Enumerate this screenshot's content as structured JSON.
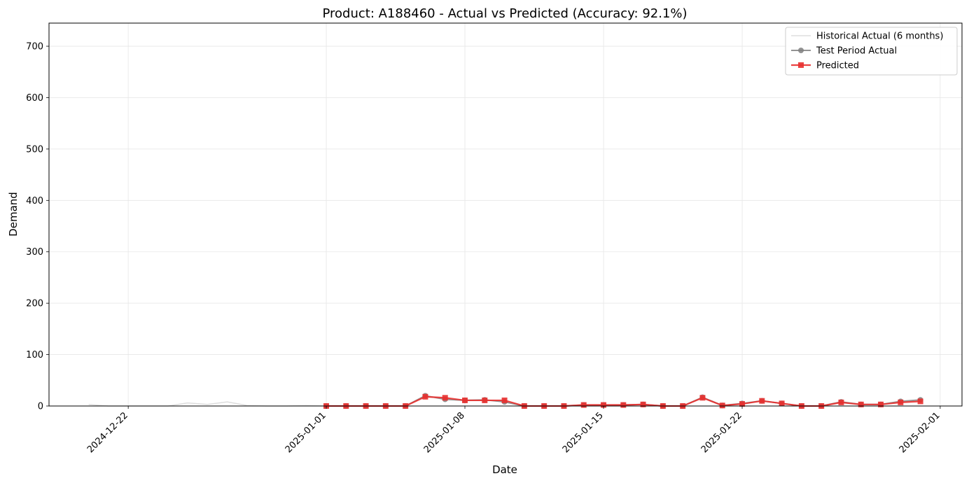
{
  "chart_data": {
    "type": "line",
    "title": "Product: A188460 - Actual vs Predicted (Accuracy: 92.1%)",
    "xlabel": "Date",
    "ylabel": "Demand",
    "ylim": [
      0,
      745
    ],
    "yticks": [
      0,
      100,
      200,
      300,
      400,
      500,
      600,
      700
    ],
    "xtick_labels": [
      "2024-12-22",
      "2025-01-01",
      "2025-01-08",
      "2025-01-15",
      "2025-01-22",
      "2025-02-01"
    ],
    "xtick_days": [
      -10,
      0,
      7,
      14,
      21,
      31
    ],
    "xlim_days": [
      -14,
      32.1
    ],
    "grid": true,
    "legend_position": "top-right",
    "colors": {
      "historical": "#d9d9d9",
      "test_actual": "#808080",
      "predicted": "#e8302f"
    },
    "series": [
      {
        "name": "Historical Actual (6 months)",
        "x_days": [
          -12,
          -11,
          -10,
          -9,
          -8,
          -7,
          -6,
          -5,
          -4,
          -3,
          -2,
          -1,
          0
        ],
        "values": [
          3,
          0,
          0,
          0,
          0,
          6,
          3,
          8,
          1,
          0,
          0,
          1,
          0
        ]
      },
      {
        "name": "Test Period Actual",
        "x_days": [
          0,
          1,
          2,
          3,
          4,
          5,
          6,
          7,
          8,
          9,
          10,
          11,
          12,
          13,
          14,
          15,
          16,
          17,
          18,
          19,
          20,
          21,
          22,
          23,
          24,
          25,
          26,
          27,
          28,
          29,
          30
        ],
        "values": [
          0,
          0,
          0,
          0,
          0,
          20,
          13,
          11,
          12,
          8,
          0,
          0,
          0,
          2,
          2,
          2,
          3,
          0,
          0,
          17,
          1,
          5,
          10,
          5,
          0,
          0,
          8,
          3,
          3,
          9,
          12
        ]
      },
      {
        "name": "Predicted",
        "x_days": [
          0,
          1,
          2,
          3,
          4,
          5,
          6,
          7,
          8,
          9,
          10,
          11,
          12,
          13,
          14,
          15,
          16,
          17,
          18,
          19,
          20,
          21,
          22,
          23,
          24,
          25,
          26,
          27,
          28,
          29,
          30
        ],
        "values": [
          0,
          0,
          0,
          0,
          0,
          18,
          16,
          11,
          11,
          11,
          0,
          0,
          0,
          2,
          2,
          2,
          3,
          0,
          0,
          16,
          1,
          4,
          10,
          5,
          0,
          0,
          7,
          3,
          3,
          7,
          9
        ]
      }
    ]
  }
}
